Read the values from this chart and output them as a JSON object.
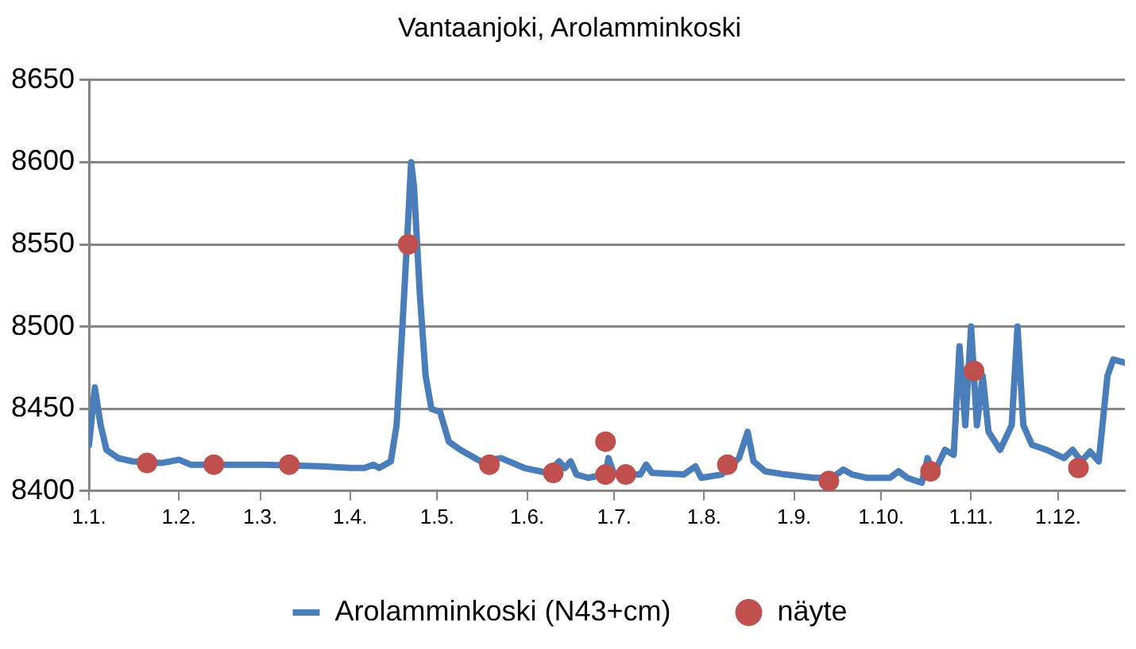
{
  "chart_data": {
    "type": "line",
    "title": "Vantaanjoki, Arolamminkoski",
    "xlim": [
      "--01-01",
      "--12-24"
    ],
    "xticks": [
      {
        "value": "--01-01",
        "label": "1.1."
      },
      {
        "value": "--02-01",
        "label": "1.2."
      },
      {
        "value": "--03-01",
        "label": "1.3."
      },
      {
        "value": "--04-01",
        "label": "1.4."
      },
      {
        "value": "--05-01",
        "label": "1.5."
      },
      {
        "value": "--06-01",
        "label": "1.6."
      },
      {
        "value": "--07-01",
        "label": "1.7."
      },
      {
        "value": "--08-01",
        "label": "1.8."
      },
      {
        "value": "--09-01",
        "label": "1.9."
      },
      {
        "value": "--10-01",
        "label": "1.10."
      },
      {
        "value": "--11-01",
        "label": "1.11."
      },
      {
        "value": "--12-01",
        "label": "1.12."
      }
    ],
    "ylim": [
      8400,
      8650
    ],
    "yticks": [
      8400,
      8450,
      8500,
      8550,
      8600,
      8650
    ],
    "grid": "y",
    "legend": "bottom",
    "marker": "none",
    "line_style": "solid",
    "series": [
      {
        "name": "Arolamminkoski (N43+cm)",
        "type": "line",
        "color": "#4a7ebb",
        "x": [
          "--01-01",
          "--01-03",
          "--01-05",
          "--01-07",
          "--01-11",
          "--01-16",
          "--01-26",
          "--02-01",
          "--02-05",
          "--03-02",
          "--03-22",
          "--04-01",
          "--04-06",
          "--04-09",
          "--04-11",
          "--04-15",
          "--04-17",
          "--04-19",
          "--04-21",
          "--04-22",
          "--04-23",
          "--04-25",
          "--04-27",
          "--04-29",
          "--05-02",
          "--05-05",
          "--05-09",
          "--05-12",
          "--05-16",
          "--05-23",
          "--05-31",
          "--06-08",
          "--06-12",
          "--06-14",
          "--06-16",
          "--06-18",
          "--06-22",
          "--06-28",
          "--06-29",
          "--07-01",
          "--07-06",
          "--07-10",
          "--07-12",
          "--07-14",
          "--07-25",
          "--07-29",
          "--07-31",
          "--08-07",
          "--08-13",
          "--08-16",
          "--08-18",
          "--08-22",
          "--08-29",
          "--09-08",
          "--09-14",
          "--09-18",
          "--09-21",
          "--09-26",
          "--10-04",
          "--10-07",
          "--10-10",
          "--10-15",
          "--10-17",
          "--10-19",
          "--10-23",
          "--10-26",
          "--10-28",
          "--10-30",
          "--11-01",
          "--11-03",
          "--11-05",
          "--11-07",
          "--11-11",
          "--11-15",
          "--11-17",
          "--11-19",
          "--11-22",
          "--11-27",
          "--12-03",
          "--12-06",
          "--12-09",
          "--12-12",
          "--12-15",
          "--12-18",
          "--12-20",
          "--12-24"
        ],
        "values": [
          8428,
          8463,
          8440,
          8425,
          8420,
          8418,
          8417,
          8419,
          8416,
          8416,
          8415,
          8414,
          8414,
          8416,
          8414,
          8418,
          8440,
          8500,
          8565,
          8600,
          8585,
          8520,
          8470,
          8450,
          8448,
          8430,
          8425,
          8422,
          8418,
          8420,
          8414,
          8411,
          8418,
          8414,
          8418,
          8410,
          8408,
          8410,
          8420,
          8410,
          8410,
          8410,
          8416,
          8411,
          8410,
          8415,
          8408,
          8410,
          8420,
          8436,
          8418,
          8412,
          8410,
          8408,
          8408,
          8413,
          8410,
          8408,
          8408,
          8412,
          8408,
          8405,
          8420,
          8410,
          8425,
          8422,
          8488,
          8440,
          8500,
          8440,
          8470,
          8436,
          8425,
          8440,
          8500,
          8440,
          8428,
          8425,
          8420,
          8425,
          8418,
          8424,
          8418,
          8470,
          8480,
          8478
        ]
      },
      {
        "name": "näyte",
        "type": "scatter",
        "color": "#c0504d",
        "marker": "circle",
        "x": [
          "--01-21",
          "--02-13",
          "--03-11",
          "--04-21",
          "--05-19",
          "--06-10",
          "--06-28",
          "--06-28",
          "--07-05",
          "--08-09",
          "--09-13",
          "--10-18",
          "--11-02",
          "--12-08"
        ],
        "values": [
          8417,
          8416,
          8416,
          8550,
          8416,
          8411,
          8410,
          8430,
          8410,
          8416,
          8406,
          8412,
          8473,
          8414
        ]
      }
    ]
  }
}
